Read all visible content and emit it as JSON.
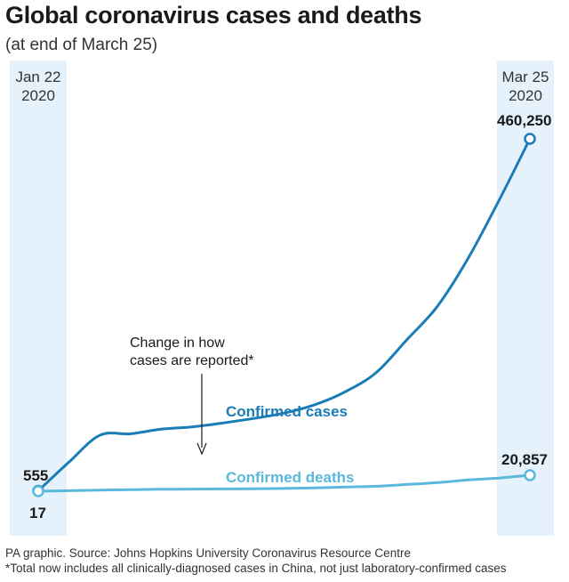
{
  "title": "Global coronavirus cases and deaths",
  "subtitle": "(at end of March 25)",
  "start_label": {
    "line1": "Jan 22",
    "line2": "2020"
  },
  "end_label": {
    "line1": "Mar 25",
    "line2": "2020"
  },
  "annotation": {
    "line1": "Change in how",
    "line2": "cases are reported*"
  },
  "footer": {
    "source": "PA graphic. Source: Johns Hopkins University Coronavirus Resource Centre",
    "note": "*Total now includes all clinically-diagnosed cases in China, not just laboratory-confirmed cases"
  },
  "colors": {
    "cases": "#1a7db6",
    "deaths": "#5ab8dc",
    "band": "#e6f2fb"
  },
  "chart_data": {
    "type": "line",
    "x_start": "Jan 22 2020",
    "x_end": "Mar 25 2020",
    "series": [
      {
        "name": "Confirmed cases",
        "start_label": "555",
        "end_label": "460,250",
        "values": [
          555,
          38000,
          73000,
          75000,
          81000,
          84000,
          89000,
          95000,
          102000,
          113000,
          130000,
          155000,
          198000,
          242000,
          305000,
          380000,
          460250
        ]
      },
      {
        "name": "Confirmed deaths",
        "start_label": "17",
        "end_label": "20,857",
        "values": [
          17,
          700,
          1400,
          2000,
          2500,
          2800,
          3000,
          3300,
          3600,
          4300,
          5400,
          6500,
          8800,
          11300,
          14700,
          17200,
          20857
        ]
      }
    ]
  }
}
